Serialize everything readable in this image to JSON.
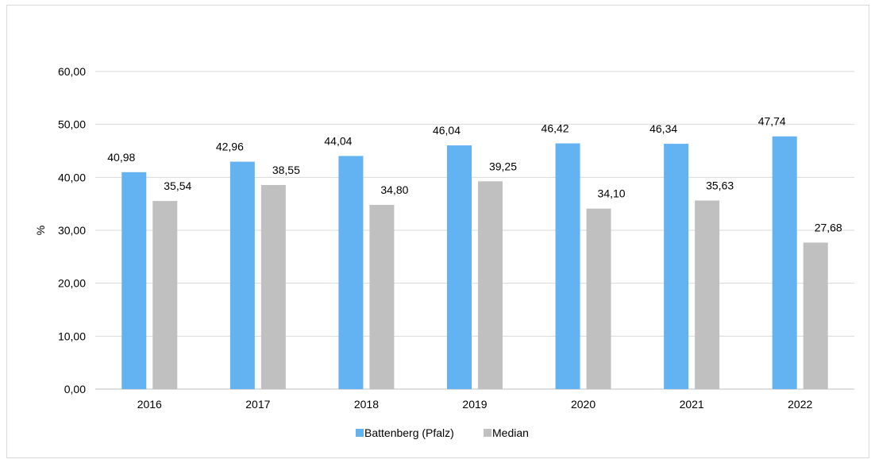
{
  "chart_data": {
    "type": "bar",
    "categories": [
      "2016",
      "2017",
      "2018",
      "2019",
      "2020",
      "2021",
      "2022"
    ],
    "series": [
      {
        "name": "Battenberg (Pfalz)",
        "color": "#63b3f3",
        "values": [
          40.98,
          42.96,
          44.04,
          46.04,
          46.42,
          46.34,
          47.74
        ],
        "labels": [
          "40,98",
          "42,96",
          "44,04",
          "46,04",
          "46,42",
          "46,34",
          "47,74"
        ]
      },
      {
        "name": "Median",
        "color": "#c0c0c0",
        "values": [
          35.54,
          38.55,
          34.8,
          39.25,
          34.1,
          35.63,
          27.68
        ],
        "labels": [
          "35,54",
          "38,55",
          "34,80",
          "39,25",
          "34,10",
          "35,63",
          "27,68"
        ]
      }
    ],
    "ylabel": "%",
    "ylim": [
      0,
      60
    ],
    "yticks": [
      0,
      10,
      20,
      30,
      40,
      50,
      60
    ],
    "ytick_labels": [
      "0,00",
      "10,00",
      "20,00",
      "30,00",
      "40,00",
      "50,00",
      "60,00"
    ],
    "grid": true,
    "legend_position": "bottom",
    "colors": {
      "grid": "#d9d9d9",
      "axis": "#bfbfbf"
    }
  }
}
